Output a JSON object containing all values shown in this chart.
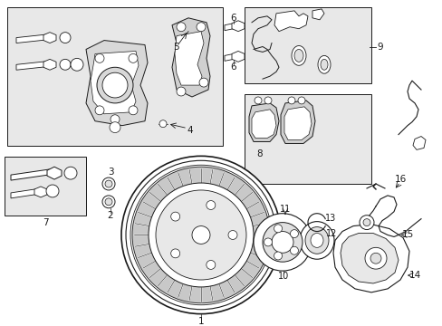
{
  "bg": "#ffffff",
  "line_color": "#1a1a1a",
  "fill_box": "#e8e8e8",
  "fill_white": "#ffffff",
  "lw": 0.7,
  "fig_w": 4.89,
  "fig_h": 3.6,
  "dpi": 100
}
